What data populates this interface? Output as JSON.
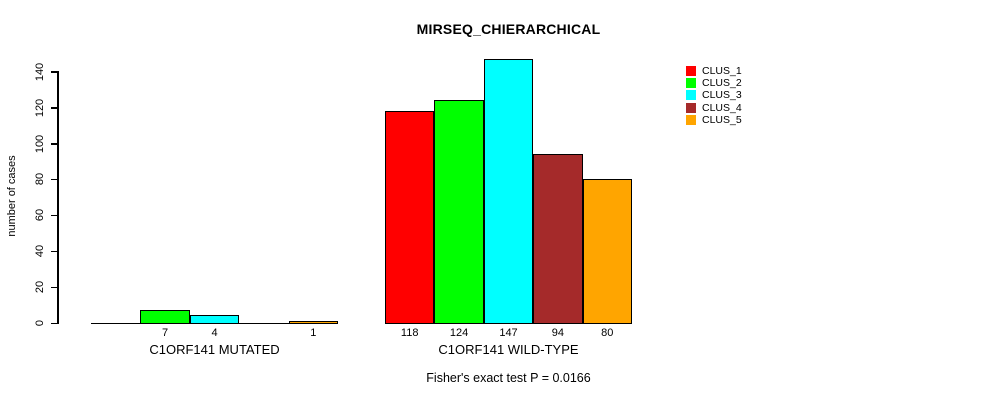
{
  "chart_data": {
    "type": "bar",
    "title": "MIRSEQ_CHIERARCHICAL",
    "ylabel": "number of cases",
    "xlabel": "",
    "ylim": [
      0,
      140
    ],
    "yticks": [
      0,
      20,
      40,
      60,
      80,
      100,
      120,
      140
    ],
    "grid": false,
    "legend_position": "top-right",
    "categories": [
      "C1ORF141 MUTATED",
      "C1ORF141 WILD-TYPE"
    ],
    "series": [
      {
        "name": "CLUS_1",
        "color": "#FF0000",
        "values": [
          0,
          118
        ]
      },
      {
        "name": "CLUS_2",
        "color": "#00FF00",
        "values": [
          7,
          124
        ]
      },
      {
        "name": "CLUS_3",
        "color": "#00FFFF",
        "values": [
          4,
          147
        ]
      },
      {
        "name": "CLUS_4",
        "color": "#A52A2A",
        "values": [
          0,
          94
        ]
      },
      {
        "name": "CLUS_5",
        "color": "#FFA500",
        "values": [
          1,
          80
        ]
      }
    ],
    "bar_value_labels": [
      [
        "",
        "7",
        "4",
        "",
        "1"
      ],
      [
        "118",
        "124",
        "147",
        "94",
        "80"
      ]
    ],
    "annotation": "Fisher's exact test P = 0.0166",
    "axis_color": "#000000",
    "bar_border_color": "#000000",
    "background_color": "#FFFFFF"
  }
}
